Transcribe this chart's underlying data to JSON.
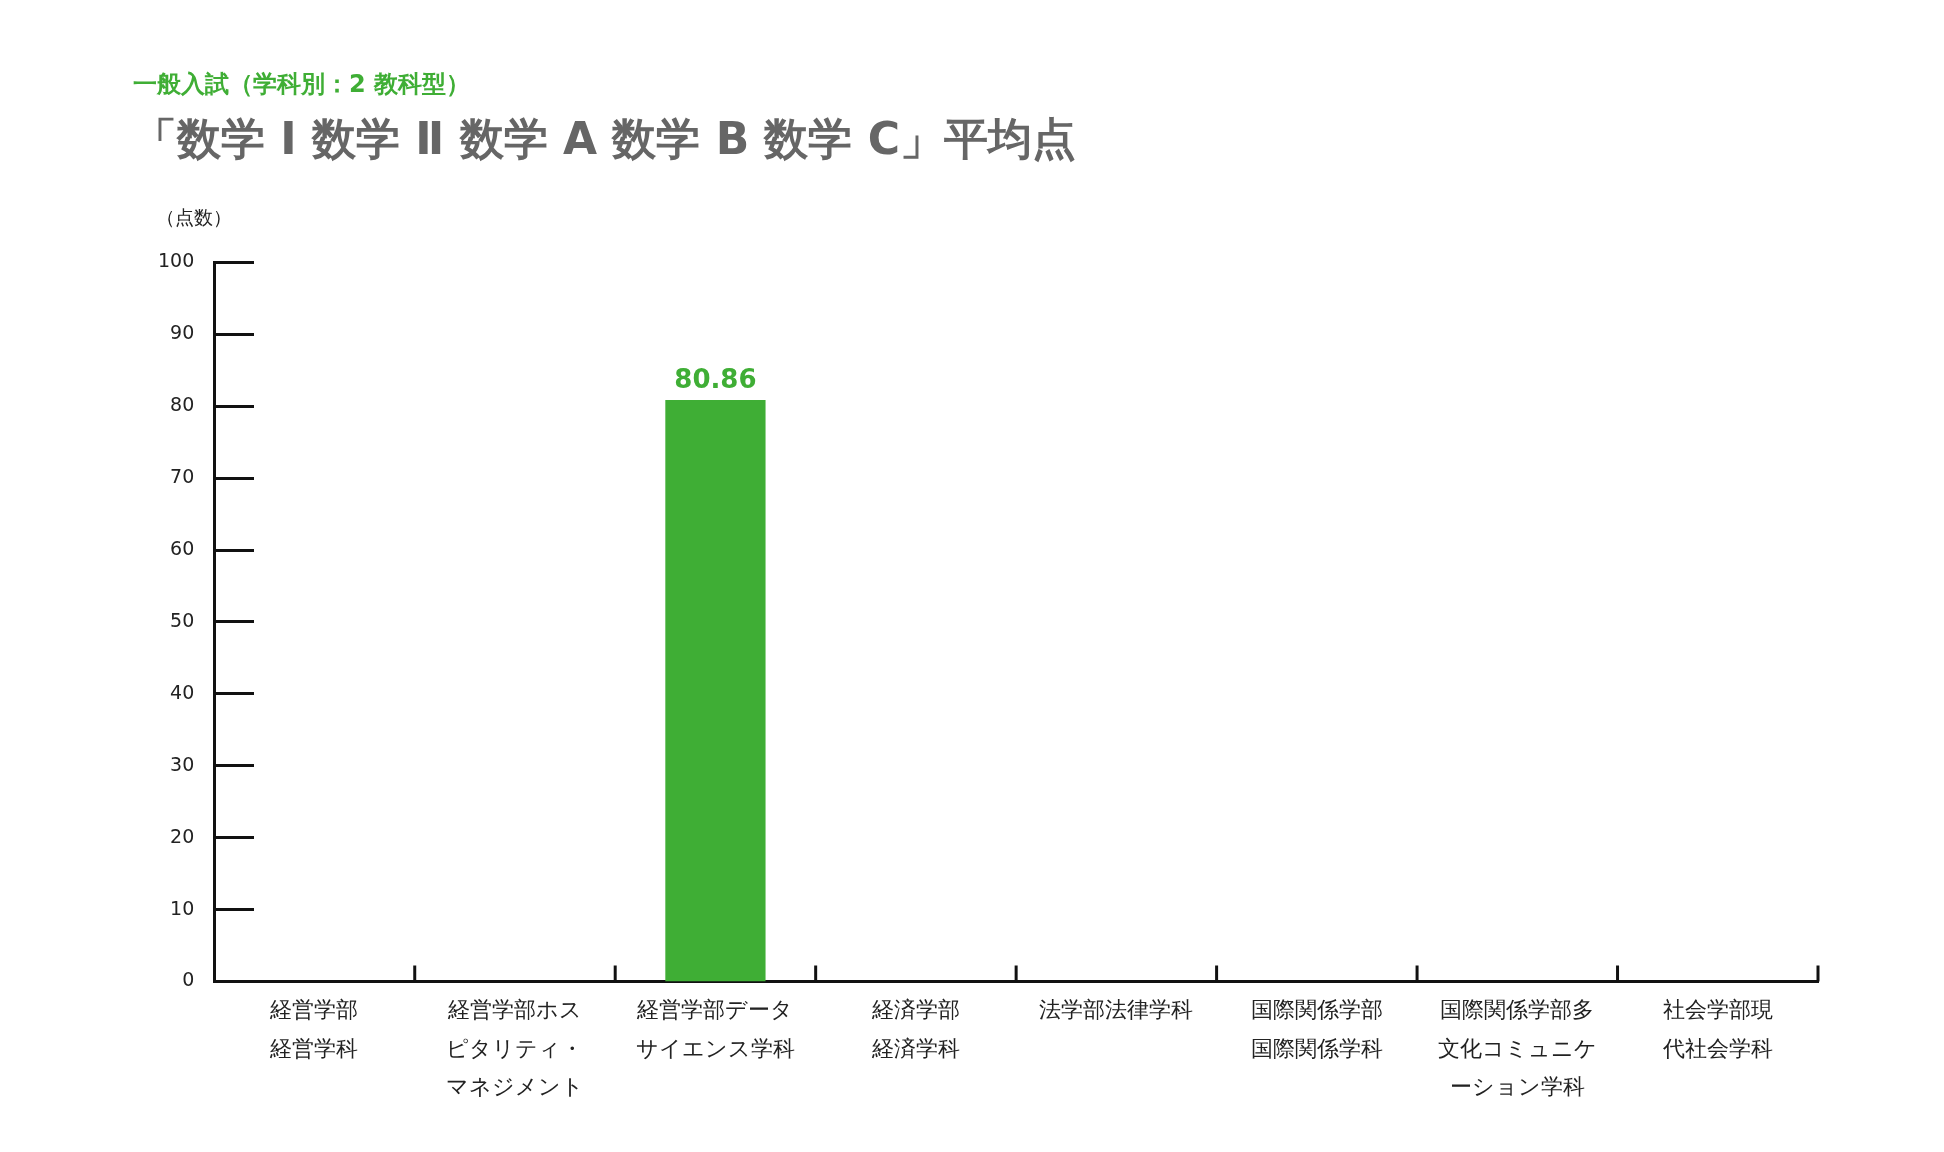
{
  "chart_data": {
    "type": "bar",
    "subtitle": "一般入試（学科別：2 教科型）",
    "title": "「数学 Ⅰ 数学 Ⅱ 数学 A 数学 B 数学 C」平均点",
    "ylabel": "（点数）",
    "categories": [
      "経営学部経営学科",
      "経営学部ホスピタリティ・マネジメント",
      "経営学部データサイエンス学科",
      "経済学部経済学科",
      "法学部法律学科",
      "国際関係学部国際関係学科",
      "国際関係学部多文化コミュニケーション学科",
      "社会学部現代社会学科"
    ],
    "series": [
      {
        "color": "#3fae35",
        "values": [
          null,
          null,
          80.86,
          null,
          null,
          null,
          null,
          null
        ]
      }
    ],
    "ylim": [
      0,
      100
    ],
    "yticks": [
      0,
      10,
      20,
      30,
      40,
      50,
      60,
      70,
      80,
      90,
      100
    ],
    "data_labels": true,
    "grid": false,
    "legend": false
  }
}
